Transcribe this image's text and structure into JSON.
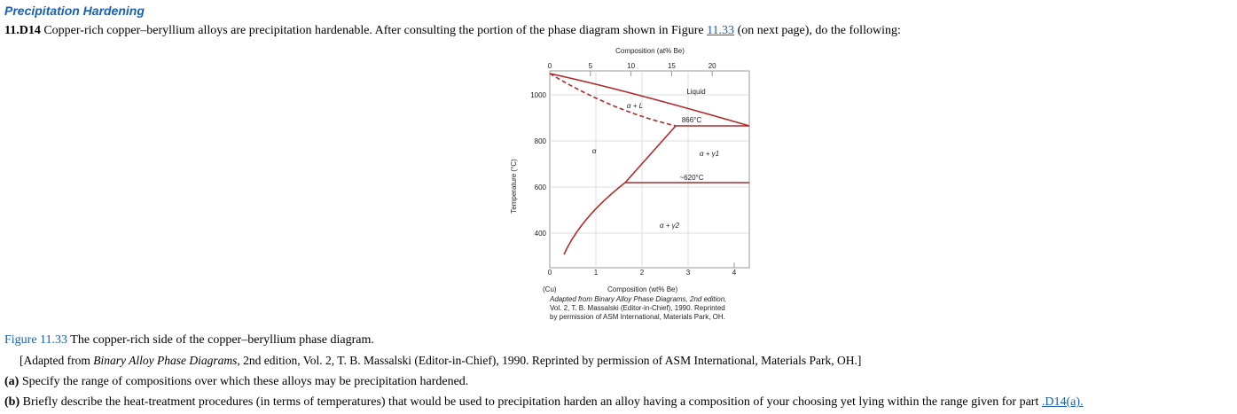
{
  "header": {
    "title": "Precipitation Hardening"
  },
  "problem": {
    "number": "11.D14",
    "text_before": "Copper-rich copper–beryllium alloys are precipitation hardenable. After consulting the portion of the phase diagram shown in Figure",
    "link": "11.33",
    "text_after": "(on next page), do the following:"
  },
  "figure": {
    "top_axis": {
      "label": "Composition (at% Be)",
      "ticks": [
        0,
        5,
        10,
        15,
        20
      ]
    },
    "left_axis": {
      "label": "Temperature (°C)",
      "ticks": [
        1000,
        800,
        600,
        400
      ]
    },
    "bottom_axis": {
      "label": "Composition (wt% Be)",
      "ticks": [
        0,
        1,
        2,
        3,
        4
      ],
      "end_label": "(Cu)"
    },
    "regions": [
      "Liquid",
      "α + L",
      "866°C",
      "α",
      "α + γ1",
      "~620°C",
      "α + γ2"
    ],
    "credit": [
      "Adapted from Binary Alloy Phase Diagrams, 2nd edition,",
      "Vol. 2, T. B. Massalski (Editor-in-Chief), 1990. Reprinted",
      "by permission of ASM International, Materials Park, OH."
    ]
  },
  "caption": {
    "label": "Figure 11.33",
    "text": "The copper-rich side of the copper–beryllium phase diagram.",
    "source_before": "[Adapted from",
    "source_title": "Binary Alloy Phase Diagrams,",
    "source_after": "2nd edition, Vol. 2, T. B. Massalski (Editor-in-Chief), 1990. Reprinted by permission of ASM International, Materials Park, OH.]"
  },
  "parts": {
    "a": {
      "label": "(a)",
      "text": "Specify the range of compositions over which these alloys may be precipitation hardened."
    },
    "b": {
      "label": "(b)",
      "text": "Briefly describe the heat-treatment procedures (in terms of temperatures) that would be used to precipitation harden an alloy having a composition of your choosing yet lying within the range given for part",
      "link": ".D14(a)."
    }
  }
}
